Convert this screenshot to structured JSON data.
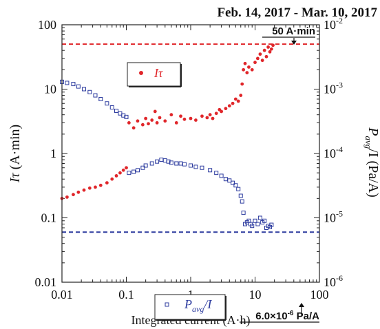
{
  "chart_data": {
    "type": "scatter",
    "title": "Feb. 14, 2017 - Mar. 10, 2017",
    "xlabel": "Integrated current (A·h)",
    "ylabel_left": {
      "main": "I",
      "tau": "τ",
      "unit": " (A·min)"
    },
    "ylabel_right": {
      "p": "P",
      "sub": "avg",
      "rest": "/I (Pa/A)"
    },
    "x_scale": "log",
    "y_scale": "log",
    "xlim": [
      0.01,
      100
    ],
    "ylim_left": [
      0.01,
      100
    ],
    "ylim_right": [
      1e-06,
      0.01
    ],
    "x_ticks": [
      {
        "value": 0.01,
        "label": "0.01"
      },
      {
        "value": 0.1,
        "label": "0.1"
      },
      {
        "value": 1,
        "label": "1"
      },
      {
        "value": 10,
        "label": "10"
      },
      {
        "value": 100,
        "label": "100"
      }
    ],
    "y_ticks_left": [
      {
        "value": 0.01,
        "label": "0.01"
      },
      {
        "value": 0.1,
        "label": "0.1"
      },
      {
        "value": 1,
        "label": "1"
      },
      {
        "value": 10,
        "label": "10"
      },
      {
        "value": 100,
        "label": "100"
      }
    ],
    "y_ticks_right": [
      {
        "value": 1e-06,
        "base": "10",
        "exp": "-6"
      },
      {
        "value": 1e-05,
        "base": "10",
        "exp": "-5"
      },
      {
        "value": 0.0001,
        "base": "10",
        "exp": "-4"
      },
      {
        "value": 0.001,
        "base": "10",
        "exp": "-3"
      },
      {
        "value": 0.01,
        "base": "10",
        "exp": "-2"
      }
    ],
    "grid": false,
    "legend": [
      {
        "series": "Itau",
        "label_main": "I",
        "label_tau": "τ",
        "color": "#e0262a",
        "marker": "filled-circle"
      },
      {
        "series": "Pavg_over_I",
        "label_main": "P",
        "label_sub": "avg",
        "label_rest": "/I",
        "color": "#2b3a9e",
        "marker": "open-square"
      }
    ],
    "reference_lines": [
      {
        "axis": "left",
        "value": 50,
        "color": "#e0262a",
        "style": "dashed",
        "label": "50 A·min"
      },
      {
        "axis": "left",
        "value": 0.06,
        "color": "#2b3a9e",
        "style": "dashed",
        "label_base": "6.0×10",
        "label_exp": "-6",
        "label_unit": " Pa/A"
      }
    ],
    "series": [
      {
        "name": "Iτ",
        "axis": "left",
        "color": "#e0262a",
        "x": [
          0.01,
          0.012,
          0.015,
          0.018,
          0.022,
          0.027,
          0.033,
          0.04,
          0.05,
          0.06,
          0.07,
          0.08,
          0.09,
          0.1,
          0.11,
          0.13,
          0.15,
          0.18,
          0.2,
          0.22,
          0.25,
          0.28,
          0.3,
          0.33,
          0.4,
          0.5,
          0.6,
          0.7,
          0.8,
          1.0,
          1.2,
          1.5,
          1.8,
          2.0,
          2.2,
          2.5,
          2.8,
          3.0,
          3.5,
          4.0,
          4.5,
          5.0,
          5.5,
          6.0,
          6.3,
          6.6,
          7.0,
          7.5,
          8.0,
          9.0,
          10.0,
          11.0,
          12.0,
          13.0,
          14.0,
          15.0,
          16.0,
          17.0,
          18.0,
          19.0
        ],
        "y": [
          0.2,
          0.21,
          0.23,
          0.25,
          0.27,
          0.29,
          0.3,
          0.32,
          0.35,
          0.4,
          0.45,
          0.5,
          0.55,
          0.6,
          3.0,
          2.5,
          3.2,
          2.8,
          3.5,
          2.9,
          3.3,
          4.5,
          3.0,
          3.6,
          3.2,
          4.0,
          3.0,
          3.8,
          3.4,
          3.5,
          3.3,
          3.8,
          3.6,
          4.0,
          3.5,
          4.2,
          4.8,
          4.5,
          5.0,
          5.5,
          6.0,
          7.0,
          6.5,
          8.0,
          12.0,
          20.0,
          25.0,
          18.0,
          22.0,
          20.0,
          26.0,
          30.0,
          35.0,
          28.0,
          40.0,
          32.0,
          45.0,
          38.0,
          42.0,
          48.0
        ]
      },
      {
        "name": "Pavg/I",
        "axis": "left",
        "color": "#2b3a9e",
        "x": [
          0.01,
          0.012,
          0.015,
          0.018,
          0.022,
          0.027,
          0.033,
          0.04,
          0.05,
          0.06,
          0.07,
          0.08,
          0.09,
          0.1,
          0.11,
          0.13,
          0.15,
          0.18,
          0.2,
          0.25,
          0.3,
          0.35,
          0.4,
          0.45,
          0.5,
          0.6,
          0.7,
          0.8,
          1.0,
          1.2,
          1.5,
          2.0,
          2.5,
          3.0,
          3.5,
          4.0,
          4.5,
          5.0,
          5.5,
          6.0,
          6.3,
          6.6,
          7.0,
          7.5,
          8.0,
          8.5,
          9.0,
          10.0,
          11.0,
          12.0,
          13.0,
          14.0,
          15.0,
          16.0,
          17.0,
          18.0
        ],
        "y": [
          13.0,
          12.5,
          12.0,
          11.0,
          10.0,
          9.0,
          8.0,
          7.0,
          6.0,
          5.2,
          4.6,
          4.2,
          3.9,
          3.7,
          0.5,
          0.52,
          0.55,
          0.6,
          0.65,
          0.7,
          0.75,
          0.8,
          0.78,
          0.75,
          0.72,
          0.7,
          0.7,
          0.68,
          0.65,
          0.62,
          0.6,
          0.55,
          0.5,
          0.45,
          0.4,
          0.38,
          0.35,
          0.32,
          0.28,
          0.22,
          0.18,
          0.12,
          0.08,
          0.085,
          0.09,
          0.08,
          0.075,
          0.09,
          0.08,
          0.1,
          0.085,
          0.09,
          0.07,
          0.075,
          0.072,
          0.078
        ]
      }
    ]
  }
}
